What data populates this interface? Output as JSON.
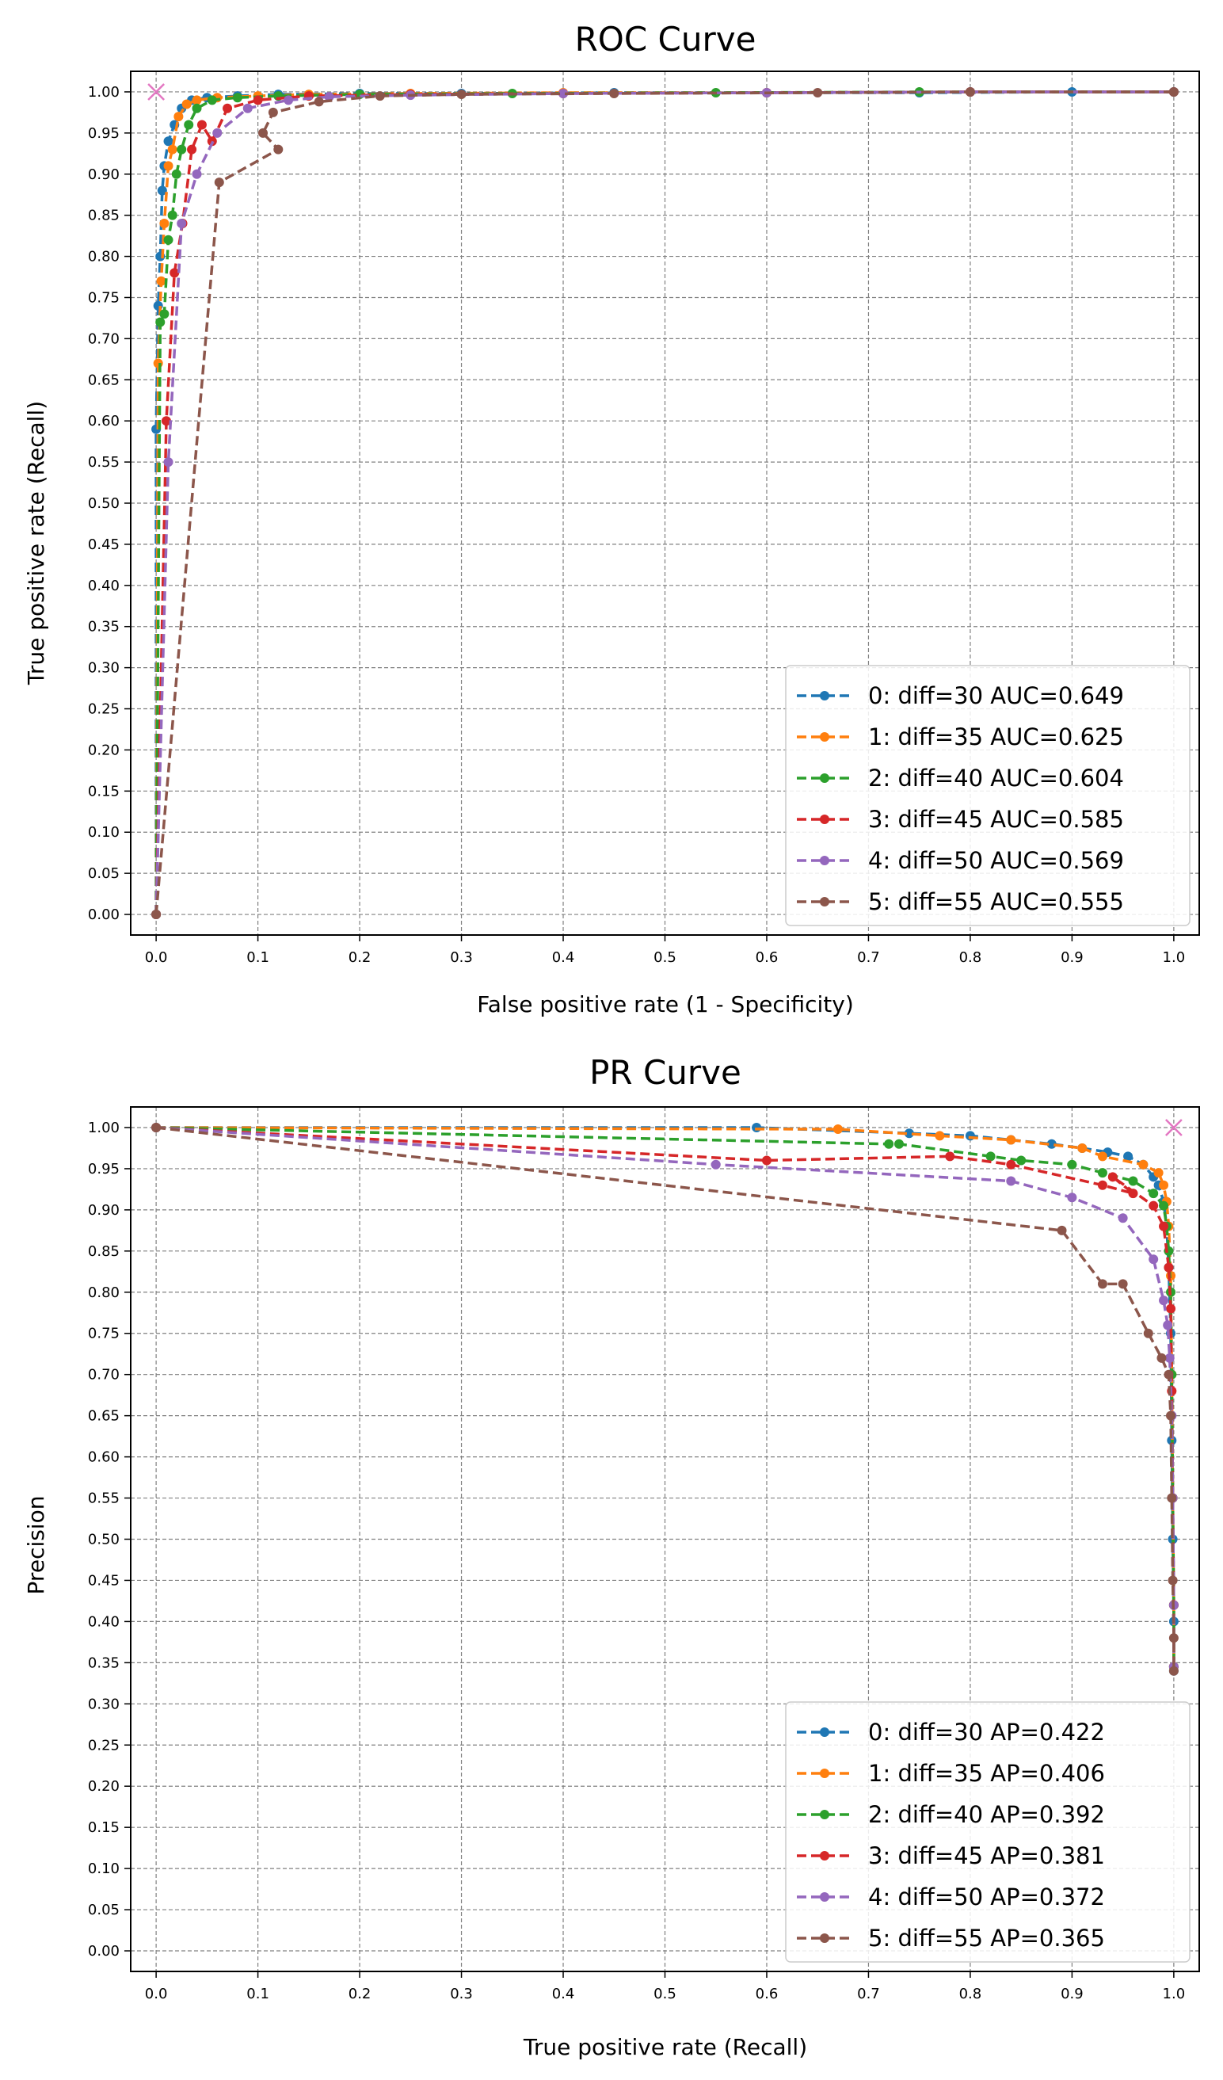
{
  "chart_data": [
    {
      "type": "line",
      "title": "ROC Curve",
      "xlabel": "False positive rate (1 - Specificity)",
      "ylabel": "True positive rate (Recall)",
      "xlim": [
        -0.025,
        1.025
      ],
      "ylim": [
        -0.025,
        1.025
      ],
      "xticks": [
        "0.0",
        "0.1",
        "0.2",
        "0.3",
        "0.4",
        "0.5",
        "0.6",
        "0.7",
        "0.8",
        "0.9",
        "1.0"
      ],
      "yticks": [
        "0.00",
        "0.05",
        "0.10",
        "0.15",
        "0.20",
        "0.25",
        "0.30",
        "0.35",
        "0.40",
        "0.45",
        "0.50",
        "0.55",
        "0.60",
        "0.65",
        "0.70",
        "0.75",
        "0.80",
        "0.85",
        "0.90",
        "0.95",
        "1.00"
      ],
      "grid": true,
      "legend_position": "bottom-right",
      "optimum_marker": {
        "x": 0.0,
        "y": 1.0,
        "symbol": "x",
        "color": "#e377c2"
      },
      "series": [
        {
          "name": "0: diff=30 AUC=0.649",
          "color": "#1f77b4",
          "x": [
            0,
            0.0,
            0.002,
            0.004,
            0.006,
            0.008,
            0.012,
            0.018,
            0.025,
            0.035,
            0.05,
            0.08,
            0.12,
            0.2,
            0.3,
            0.45,
            0.6,
            0.75,
            0.9,
            1.0
          ],
          "y": [
            0,
            0.59,
            0.74,
            0.8,
            0.88,
            0.91,
            0.94,
            0.96,
            0.98,
            0.99,
            0.993,
            0.995,
            0.997,
            0.998,
            0.998,
            0.999,
            0.999,
            0.999,
            1.0,
            1.0
          ]
        },
        {
          "name": "1: diff=35 AUC=0.625",
          "color": "#ff7f0e",
          "x": [
            0,
            0.002,
            0.005,
            0.008,
            0.012,
            0.016,
            0.022,
            0.03,
            0.04,
            0.06,
            0.1,
            0.15,
            0.25,
            0.4,
            0.6,
            0.8,
            1.0
          ],
          "y": [
            0,
            0.67,
            0.77,
            0.84,
            0.91,
            0.93,
            0.97,
            0.985,
            0.99,
            0.993,
            0.995,
            0.997,
            0.998,
            0.999,
            0.999,
            1.0,
            1.0
          ]
        },
        {
          "name": "2: diff=40 AUC=0.604",
          "color": "#2ca02c",
          "x": [
            0,
            0.004,
            0.008,
            0.012,
            0.016,
            0.02,
            0.025,
            0.032,
            0.04,
            0.055,
            0.08,
            0.12,
            0.2,
            0.35,
            0.55,
            0.75,
            1.0
          ],
          "y": [
            0,
            0.72,
            0.73,
            0.82,
            0.85,
            0.9,
            0.93,
            0.96,
            0.98,
            0.99,
            0.993,
            0.995,
            0.997,
            0.998,
            0.999,
            1.0,
            1.0
          ]
        },
        {
          "name": "3: diff=45 AUC=0.585",
          "color": "#d62728",
          "x": [
            0,
            0.01,
            0.018,
            0.026,
            0.035,
            0.045,
            0.055,
            0.07,
            0.1,
            0.15,
            0.25,
            0.4,
            0.6,
            0.8,
            1.0
          ],
          "y": [
            0,
            0.6,
            0.78,
            0.84,
            0.93,
            0.96,
            0.94,
            0.98,
            0.99,
            0.995,
            0.997,
            0.998,
            0.999,
            1.0,
            1.0
          ]
        },
        {
          "name": "4: diff=50 AUC=0.569",
          "color": "#9467bd",
          "x": [
            0,
            0.012,
            0.025,
            0.04,
            0.06,
            0.09,
            0.13,
            0.17,
            0.25,
            0.4,
            0.6,
            0.8,
            1.0
          ],
          "y": [
            0,
            0.55,
            0.84,
            0.9,
            0.95,
            0.98,
            0.99,
            0.994,
            0.996,
            0.998,
            0.999,
            1.0,
            1.0
          ]
        },
        {
          "name": "5: diff=55 AUC=0.555",
          "color": "#8c564b",
          "x": [
            0,
            0.062,
            0.12,
            0.105,
            0.115,
            0.16,
            0.22,
            0.3,
            0.45,
            0.65,
            0.8,
            1.0
          ],
          "y": [
            0,
            0.89,
            0.93,
            0.95,
            0.975,
            0.988,
            0.995,
            0.997,
            0.998,
            0.999,
            1.0,
            1.0
          ]
        }
      ]
    },
    {
      "type": "line",
      "title": "PR Curve",
      "xlabel": "True positive rate (Recall)",
      "ylabel": "Precision",
      "xlim": [
        -0.025,
        1.025
      ],
      "ylim": [
        -0.025,
        1.025
      ],
      "xticks": [
        "0.0",
        "0.1",
        "0.2",
        "0.3",
        "0.4",
        "0.5",
        "0.6",
        "0.7",
        "0.8",
        "0.9",
        "1.0"
      ],
      "yticks": [
        "0.00",
        "0.05",
        "0.10",
        "0.15",
        "0.20",
        "0.25",
        "0.30",
        "0.35",
        "0.40",
        "0.45",
        "0.50",
        "0.55",
        "0.60",
        "0.65",
        "0.70",
        "0.75",
        "0.80",
        "0.85",
        "0.90",
        "0.95",
        "1.00"
      ],
      "grid": true,
      "legend_position": "bottom-right",
      "optimum_marker": {
        "x": 1.0,
        "y": 1.0,
        "symbol": "x",
        "color": "#e377c2"
      },
      "series": [
        {
          "name": "0: diff=30 AP=0.422",
          "color": "#1f77b4",
          "x": [
            0,
            0.59,
            0.74,
            0.8,
            0.84,
            0.88,
            0.91,
            0.935,
            0.955,
            0.97,
            0.98,
            0.985,
            0.99,
            0.993,
            0.995,
            0.997,
            0.998,
            0.999,
            1.0,
            1.0
          ],
          "y": [
            1.0,
            1.0,
            0.993,
            0.99,
            0.985,
            0.98,
            0.975,
            0.97,
            0.965,
            0.955,
            0.94,
            0.93,
            0.91,
            0.88,
            0.83,
            0.75,
            0.62,
            0.5,
            0.4,
            0.34
          ]
        },
        {
          "name": "1: diff=35 AP=0.406",
          "color": "#ff7f0e",
          "x": [
            0,
            0.67,
            0.77,
            0.84,
            0.91,
            0.93,
            0.97,
            0.985,
            0.99,
            0.993,
            0.995,
            0.997,
            0.998,
            0.999,
            1.0,
            1.0
          ],
          "y": [
            1.0,
            0.998,
            0.99,
            0.985,
            0.975,
            0.965,
            0.955,
            0.945,
            0.93,
            0.91,
            0.88,
            0.82,
            0.7,
            0.55,
            0.42,
            0.345
          ]
        },
        {
          "name": "2: diff=40 AP=0.392",
          "color": "#2ca02c",
          "x": [
            0,
            0.72,
            0.73,
            0.82,
            0.85,
            0.9,
            0.93,
            0.96,
            0.98,
            0.99,
            0.993,
            0.995,
            0.997,
            0.998,
            0.999,
            1.0,
            1.0
          ],
          "y": [
            1.0,
            0.98,
            0.98,
            0.965,
            0.96,
            0.955,
            0.945,
            0.935,
            0.92,
            0.905,
            0.88,
            0.85,
            0.8,
            0.7,
            0.55,
            0.42,
            0.345
          ]
        },
        {
          "name": "3: diff=45 AP=0.381",
          "color": "#d62728",
          "x": [
            0,
            0.6,
            0.78,
            0.84,
            0.93,
            0.96,
            0.94,
            0.98,
            0.99,
            0.995,
            0.997,
            0.998,
            0.999,
            1.0,
            1.0
          ],
          "y": [
            1.0,
            0.96,
            0.965,
            0.955,
            0.93,
            0.92,
            0.94,
            0.905,
            0.88,
            0.83,
            0.78,
            0.68,
            0.55,
            0.42,
            0.345
          ]
        },
        {
          "name": "4: diff=50 AP=0.372",
          "color": "#9467bd",
          "x": [
            0,
            0.55,
            0.84,
            0.9,
            0.95,
            0.98,
            0.99,
            0.994,
            0.996,
            0.998,
            0.999,
            1.0,
            1.0
          ],
          "y": [
            1.0,
            0.955,
            0.935,
            0.915,
            0.89,
            0.84,
            0.79,
            0.76,
            0.72,
            0.65,
            0.55,
            0.42,
            0.345
          ]
        },
        {
          "name": "5: diff=55 AP=0.365",
          "color": "#8c564b",
          "x": [
            0,
            0.89,
            0.93,
            0.95,
            0.975,
            0.988,
            0.995,
            0.997,
            0.998,
            0.999,
            1.0,
            1.0
          ],
          "y": [
            1.0,
            0.875,
            0.81,
            0.81,
            0.75,
            0.72,
            0.7,
            0.65,
            0.55,
            0.45,
            0.38,
            0.34
          ]
        }
      ]
    }
  ]
}
